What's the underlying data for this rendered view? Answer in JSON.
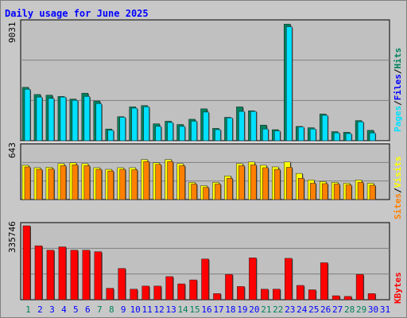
{
  "title": "Daily usage for June 2025",
  "colors": {
    "background": "#c8c8c8",
    "plot": "#c0c0c0",
    "title": "#0000ff",
    "hits": "#00805c",
    "files": "#00e0ff",
    "visits": "#ffff00",
    "sites": "#ff8000",
    "kbytes": "#ff0000",
    "weekend_day": "#00805c",
    "weekday": "#0000ff"
  },
  "axis_labels": {
    "top_max": "9031",
    "middle_max": "643",
    "bottom_max": "335746"
  },
  "right_labels": {
    "pages": "Pages",
    "files": "Files",
    "hits": "Hits",
    "sites": "Sites",
    "visits": "Visits",
    "kbytes": "KBytes",
    "sep": "/"
  },
  "chart_data": [
    {
      "type": "bar",
      "title": "Daily usage for June 2025",
      "ylim": [
        0,
        9031
      ],
      "ylabel_top": "9031",
      "categories": [
        "1",
        "2",
        "3",
        "4",
        "5",
        "6",
        "7",
        "8",
        "9",
        "10",
        "11",
        "12",
        "13",
        "14",
        "15",
        "16",
        "17",
        "18",
        "19",
        "20",
        "21",
        "22",
        "23",
        "24",
        "25",
        "26",
        "27",
        "28",
        "29",
        "30",
        "31"
      ],
      "series": [
        {
          "name": "Hits",
          "values": [
            4100,
            3550,
            3500,
            3400,
            3200,
            3650,
            3050,
            900,
            1850,
            2600,
            2700,
            1300,
            1500,
            1250,
            1650,
            2450,
            950,
            1800,
            2600,
            2300,
            1200,
            850,
            8950,
            1100,
            1000,
            2050,
            700,
            650,
            1550,
            800,
            0
          ]
        },
        {
          "name": "Files",
          "values": [
            3950,
            3350,
            3250,
            3350,
            3100,
            3400,
            2850,
            800,
            1800,
            2500,
            2600,
            1100,
            1400,
            1100,
            1500,
            2200,
            850,
            1750,
            2250,
            2250,
            900,
            750,
            8750,
            1050,
            900,
            1950,
            600,
            550,
            1450,
            600,
            0
          ]
        },
        {
          "name": "Pages",
          "values": [
            0,
            0,
            0,
            0,
            0,
            0,
            0,
            0,
            0,
            0,
            0,
            0,
            0,
            0,
            0,
            0,
            0,
            0,
            0,
            0,
            0,
            0,
            0,
            0,
            0,
            0,
            0,
            0,
            0,
            0,
            0
          ]
        }
      ]
    },
    {
      "type": "bar",
      "ylim": [
        0,
        643
      ],
      "ylabel_top": "643",
      "categories": [
        "1",
        "2",
        "3",
        "4",
        "5",
        "6",
        "7",
        "8",
        "9",
        "10",
        "11",
        "12",
        "13",
        "14",
        "15",
        "16",
        "17",
        "18",
        "19",
        "20",
        "21",
        "22",
        "23",
        "24",
        "25",
        "26",
        "27",
        "28",
        "29",
        "30",
        "31"
      ],
      "series": [
        {
          "name": "Visits",
          "values": [
            420,
            390,
            395,
            440,
            450,
            440,
            390,
            370,
            390,
            390,
            490,
            450,
            490,
            440,
            210,
            170,
            210,
            290,
            440,
            460,
            420,
            400,
            460,
            320,
            240,
            220,
            210,
            200,
            240,
            200,
            0
          ]
        },
        {
          "name": "Sites",
          "values": [
            400,
            370,
            375,
            415,
            425,
            415,
            370,
            350,
            370,
            365,
            465,
            430,
            465,
            415,
            190,
            150,
            190,
            260,
            415,
            425,
            390,
            370,
            395,
            260,
            200,
            195,
            190,
            180,
            210,
            175,
            0
          ]
        }
      ]
    },
    {
      "type": "bar",
      "ylim": [
        0,
        335746
      ],
      "ylabel_top": "335746",
      "categories": [
        "1",
        "2",
        "3",
        "4",
        "5",
        "6",
        "7",
        "8",
        "9",
        "10",
        "11",
        "12",
        "13",
        "14",
        "15",
        "16",
        "17",
        "18",
        "19",
        "20",
        "21",
        "22",
        "23",
        "24",
        "25",
        "26",
        "27",
        "28",
        "29",
        "30",
        "31"
      ],
      "series": [
        {
          "name": "KBytes",
          "values": [
            335746,
            245000,
            225000,
            240000,
            225000,
            225000,
            218000,
            52000,
            142000,
            48000,
            62000,
            62000,
            105000,
            72000,
            90000,
            185000,
            28000,
            115000,
            60000,
            190000,
            48000,
            48000,
            188000,
            65000,
            45000,
            168000,
            18000,
            15000,
            115000,
            28000,
            0
          ]
        }
      ]
    }
  ]
}
